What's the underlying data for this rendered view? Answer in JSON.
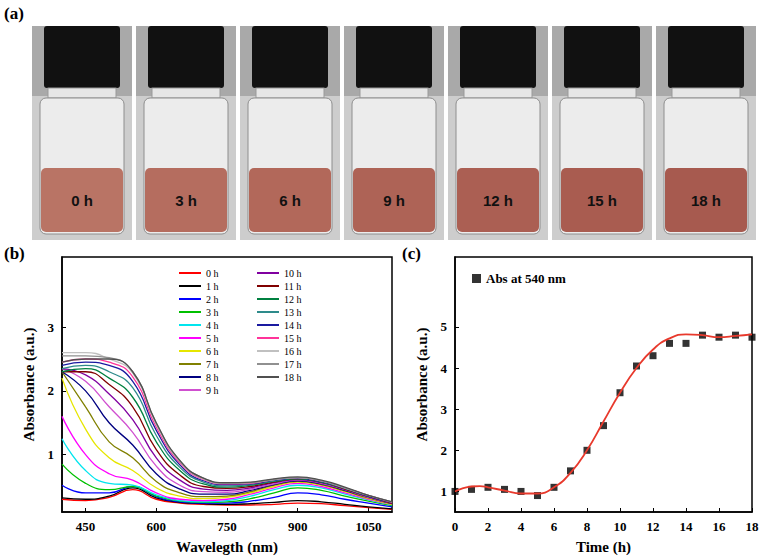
{
  "panel_a": {
    "panel": "(a)",
    "labels": [
      "0 h",
      "3 h",
      "6 h",
      "9 h",
      "12 h",
      "15 h",
      "18 h"
    ]
  },
  "chart_data": [
    {
      "panel": "(b)",
      "type": "line",
      "xlabel": "Wavelegth (nm)",
      "ylabel": "Absorbance (a.u.)",
      "xlim": [
        400,
        1100
      ],
      "xticks": [
        450,
        600,
        750,
        900,
        1050
      ],
      "ylim": [
        0.1,
        4.1
      ],
      "yticks": [
        1,
        2,
        3
      ],
      "grid": false,
      "legend": "top-right",
      "x": [
        400,
        450,
        500,
        550,
        600,
        650,
        700,
        750,
        800,
        850,
        900,
        950,
        1000,
        1050,
        1100
      ],
      "series": [
        {
          "name": "0 h",
          "color": "#ff0000",
          "values": [
            0.3,
            0.28,
            0.33,
            0.45,
            0.3,
            0.24,
            0.22,
            0.21,
            0.21,
            0.22,
            0.24,
            0.23,
            0.2,
            0.17,
            0.14
          ]
        },
        {
          "name": "1 h",
          "color": "#000000",
          "values": [
            0.32,
            0.3,
            0.35,
            0.48,
            0.32,
            0.25,
            0.23,
            0.22,
            0.23,
            0.25,
            0.28,
            0.26,
            0.22,
            0.18,
            0.15
          ]
        },
        {
          "name": "2 h",
          "color": "#0000ff",
          "values": [
            0.52,
            0.4,
            0.4,
            0.5,
            0.34,
            0.26,
            0.24,
            0.24,
            0.27,
            0.33,
            0.4,
            0.37,
            0.3,
            0.24,
            0.18
          ]
        },
        {
          "name": "3 h",
          "color": "#00c000",
          "values": [
            0.85,
            0.55,
            0.45,
            0.5,
            0.35,
            0.27,
            0.25,
            0.26,
            0.31,
            0.4,
            0.48,
            0.44,
            0.35,
            0.27,
            0.2
          ]
        },
        {
          "name": "4 h",
          "color": "#00e5ee",
          "values": [
            1.25,
            0.75,
            0.55,
            0.52,
            0.37,
            0.28,
            0.26,
            0.28,
            0.35,
            0.45,
            0.52,
            0.48,
            0.38,
            0.29,
            0.21
          ]
        },
        {
          "name": "5 h",
          "color": "#ff00ff",
          "values": [
            1.6,
            1.0,
            0.7,
            0.6,
            0.4,
            0.3,
            0.28,
            0.3,
            0.38,
            0.48,
            0.55,
            0.5,
            0.4,
            0.3,
            0.22
          ]
        },
        {
          "name": "6 h",
          "color": "#e6e600",
          "values": [
            2.2,
            1.4,
            0.95,
            0.75,
            0.48,
            0.35,
            0.31,
            0.33,
            0.4,
            0.5,
            0.57,
            0.52,
            0.42,
            0.31,
            0.22
          ]
        },
        {
          "name": "7 h",
          "color": "#808000",
          "values": [
            2.3,
            1.75,
            1.2,
            0.95,
            0.58,
            0.4,
            0.34,
            0.35,
            0.42,
            0.52,
            0.58,
            0.53,
            0.43,
            0.32,
            0.23
          ]
        },
        {
          "name": "8 h",
          "color": "#000080",
          "values": [
            2.3,
            2.0,
            1.5,
            1.15,
            0.7,
            0.46,
            0.38,
            0.38,
            0.44,
            0.53,
            0.59,
            0.54,
            0.44,
            0.33,
            0.23
          ]
        },
        {
          "name": "9 h",
          "color": "#d050d0",
          "values": [
            2.35,
            2.15,
            1.75,
            1.35,
            0.82,
            0.52,
            0.42,
            0.41,
            0.46,
            0.54,
            0.6,
            0.55,
            0.45,
            0.33,
            0.24
          ]
        },
        {
          "name": "10 h",
          "color": "#8000a0",
          "values": [
            2.35,
            2.25,
            1.95,
            1.55,
            0.95,
            0.6,
            0.46,
            0.44,
            0.48,
            0.56,
            0.61,
            0.56,
            0.46,
            0.34,
            0.24
          ]
        },
        {
          "name": "11 h",
          "color": "#800000",
          "values": [
            2.3,
            2.3,
            2.1,
            1.75,
            1.08,
            0.68,
            0.5,
            0.47,
            0.5,
            0.57,
            0.62,
            0.57,
            0.46,
            0.34,
            0.24
          ]
        },
        {
          "name": "12 h",
          "color": "#008040",
          "values": [
            2.3,
            2.35,
            2.2,
            1.9,
            1.2,
            0.75,
            0.54,
            0.49,
            0.52,
            0.58,
            0.62,
            0.57,
            0.47,
            0.35,
            0.25
          ]
        },
        {
          "name": "13 h",
          "color": "#2e8b8b",
          "values": [
            2.35,
            2.4,
            2.3,
            2.05,
            1.3,
            0.8,
            0.57,
            0.51,
            0.53,
            0.59,
            0.63,
            0.58,
            0.47,
            0.35,
            0.25
          ]
        },
        {
          "name": "14 h",
          "color": "#1a1aa0",
          "values": [
            2.4,
            2.45,
            2.4,
            2.15,
            1.38,
            0.84,
            0.59,
            0.53,
            0.54,
            0.6,
            0.63,
            0.58,
            0.48,
            0.35,
            0.25
          ]
        },
        {
          "name": "15 h",
          "color": "#ff3399",
          "values": [
            2.45,
            2.5,
            2.45,
            2.22,
            1.43,
            0.87,
            0.61,
            0.54,
            0.55,
            0.61,
            0.64,
            0.59,
            0.48,
            0.36,
            0.25
          ]
        },
        {
          "name": "16 h",
          "color": "#c0c0c0",
          "values": [
            2.6,
            2.6,
            2.5,
            2.28,
            1.47,
            0.89,
            0.62,
            0.55,
            0.56,
            0.61,
            0.64,
            0.59,
            0.48,
            0.36,
            0.26
          ]
        },
        {
          "name": "17 h",
          "color": "#909090",
          "values": [
            2.55,
            2.55,
            2.52,
            2.3,
            1.49,
            0.9,
            0.63,
            0.55,
            0.56,
            0.61,
            0.64,
            0.59,
            0.48,
            0.36,
            0.26
          ]
        },
        {
          "name": "18 h",
          "color": "#505050",
          "values": [
            2.45,
            2.5,
            2.5,
            2.3,
            1.5,
            0.91,
            0.63,
            0.56,
            0.57,
            0.62,
            0.65,
            0.6,
            0.49,
            0.36,
            0.26
          ]
        }
      ]
    },
    {
      "panel": "(c)",
      "type": "scatter",
      "xlabel": "Time (h)",
      "ylabel": "Absorbance (a.u.)",
      "xlim": [
        0,
        18
      ],
      "xticks": [
        0,
        2,
        4,
        6,
        8,
        10,
        12,
        14,
        16,
        18
      ],
      "ylim": [
        0.5,
        6.7
      ],
      "yticks": [
        1,
        2,
        3,
        4,
        5
      ],
      "grid": false,
      "legend": "top-left",
      "series": [
        {
          "name": "Abs at 540 nm",
          "type": "scatter",
          "marker": "square",
          "color": "#000000",
          "x": [
            0,
            1,
            2,
            3,
            4,
            5,
            6,
            7,
            8,
            9,
            10,
            11,
            12,
            13,
            14,
            15,
            16,
            17,
            18
          ],
          "values": [
            1.0,
            1.05,
            1.1,
            1.05,
            1.0,
            0.9,
            1.1,
            1.5,
            2.0,
            2.6,
            3.4,
            4.05,
            4.3,
            4.6,
            4.6,
            4.8,
            4.75,
            4.8,
            4.75
          ]
        },
        {
          "type": "line",
          "line_style": "solid",
          "color": "#e8392c",
          "x": [
            0,
            0.5,
            1,
            1.5,
            2,
            3,
            4,
            5,
            6,
            7,
            8,
            9,
            10,
            11,
            12,
            13,
            14,
            15,
            16,
            17,
            18
          ],
          "values": [
            1.0,
            1.08,
            1.12,
            1.13,
            1.1,
            1.02,
            0.95,
            0.95,
            1.1,
            1.45,
            2.0,
            2.7,
            3.4,
            4.0,
            4.45,
            4.72,
            4.82,
            4.8,
            4.75,
            4.78,
            4.82
          ]
        }
      ]
    }
  ]
}
